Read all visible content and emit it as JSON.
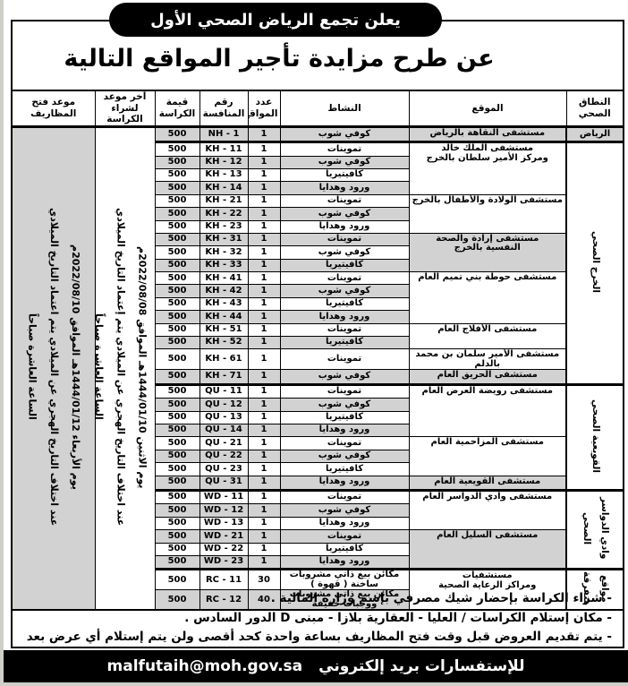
{
  "header": {
    "org_badge": "يعلن تجمع الرياض الصحي الأول",
    "title": "عن طرح مزايدة تأجير المواقع التالية"
  },
  "colors": {
    "shaded_row": "#d2d2d2",
    "footer_bg": "#000000",
    "text": "#000000"
  },
  "table": {
    "columns": [
      "النطاق\nالصحي",
      "الموقع",
      "النشاط",
      "عدد\nالمواقع",
      "رقم المنافسة",
      "قيمة\nالكراسة",
      "آخر موعد لشراء\nالكراسة",
      "موعد فتح\nالمظاريف"
    ],
    "purchase_deadline": "يوم الاثنين 1444/01/10هـ الموافق 2022/08/08م\nعند اختلاف التاريخ الهجري عن الميلادي يتم إعتماد التاريخ الميلادي\nالساعة العاشرة صباحاً",
    "envelope_opening": "يوم الأربعاء 1444/01/12هـ الموافق 2022/08/10م\nعند اختلاف التاريخ الهجري عن الميلادي يتم اعتماد التاريخ الميلادي\nالساعة العاشرة صباحاً",
    "groups": [
      {
        "zone": "الرياض",
        "rotated": false,
        "locations": [
          {
            "name": "مستشفى النقاهة بالرياض",
            "rows": [
              {
                "activity": "كوفي شوب",
                "count": "1",
                "comp": "NH - 1",
                "price": "500"
              }
            ]
          }
        ]
      },
      {
        "zone": "الخرج الصحي",
        "rotated": true,
        "locations": [
          {
            "name": "مستشفى الملك خالد\nومركز الأمير سلطان بالخرج",
            "rows": [
              {
                "activity": "تموينات",
                "count": "1",
                "comp": "KH - 11",
                "price": "500"
              },
              {
                "activity": "كوفي شوب",
                "count": "1",
                "comp": "KH - 12",
                "price": "500"
              },
              {
                "activity": "كافيتيريا",
                "count": "1",
                "comp": "KH - 13",
                "price": "500"
              },
              {
                "activity": "ورود وهدايا",
                "count": "1",
                "comp": "KH - 14",
                "price": "500"
              }
            ]
          },
          {
            "name": "مستشفى الولادة والأطفال بالخرج",
            "rows": [
              {
                "activity": "تموينات",
                "count": "1",
                "comp": "KH - 21",
                "price": "500"
              },
              {
                "activity": "كوفي شوب",
                "count": "1",
                "comp": "KH - 22",
                "price": "500"
              },
              {
                "activity": "ورود وهدايا",
                "count": "1",
                "comp": "KH - 23",
                "price": "500"
              }
            ]
          },
          {
            "name": "مستشفى إرادة والصحة\nالنفسية بالخرج",
            "rows": [
              {
                "activity": "تموينات",
                "count": "1",
                "comp": "KH - 31",
                "price": "500"
              },
              {
                "activity": "كوفي شوب",
                "count": "1",
                "comp": "KH - 32",
                "price": "500"
              },
              {
                "activity": "كافيتيريا",
                "count": "1",
                "comp": "KH - 33",
                "price": "500"
              }
            ]
          },
          {
            "name": "مستشفى حوطة بني تميم العام",
            "rows": [
              {
                "activity": "تموينات",
                "count": "1",
                "comp": "KH - 41",
                "price": "500"
              },
              {
                "activity": "كوفي شوب",
                "count": "1",
                "comp": "KH - 42",
                "price": "500"
              },
              {
                "activity": "كافيتيريا",
                "count": "1",
                "comp": "KH - 43",
                "price": "500"
              },
              {
                "activity": "ورود وهدايا",
                "count": "1",
                "comp": "KH - 44",
                "price": "500"
              }
            ]
          },
          {
            "name": "مستشفى الأفلاج العام",
            "rows": [
              {
                "activity": "تموينات",
                "count": "1",
                "comp": "KH - 51",
                "price": "500"
              },
              {
                "activity": "كافيتيريا",
                "count": "1",
                "comp": "KH - 52",
                "price": "500"
              }
            ]
          },
          {
            "name": "مستشفى الأمير سلمان بن محمد بالدلم",
            "rows": [
              {
                "activity": "تموينات",
                "count": "1",
                "comp": "KH - 61",
                "price": "500"
              }
            ]
          },
          {
            "name": "مستشفى الحريق العام",
            "rows": [
              {
                "activity": "كوفي شوب",
                "count": "1",
                "comp": "KH - 71",
                "price": "500"
              }
            ]
          }
        ]
      },
      {
        "zone": "القويعية الصحي",
        "rotated": true,
        "locations": [
          {
            "name": "مستشفى رويضة العرض العام",
            "rows": [
              {
                "activity": "تموينات",
                "count": "1",
                "comp": "QU - 11",
                "price": "500"
              },
              {
                "activity": "كوفي شوب",
                "count": "1",
                "comp": "QU - 12",
                "price": "500"
              },
              {
                "activity": "كافيتيريا",
                "count": "1",
                "comp": "QU - 13",
                "price": "500"
              },
              {
                "activity": "ورود وهدايا",
                "count": "1",
                "comp": "QU - 14",
                "price": "500"
              }
            ]
          },
          {
            "name": "مستشفى المزاحمية العام",
            "rows": [
              {
                "activity": "تموينات",
                "count": "1",
                "comp": "QU - 21",
                "price": "500"
              },
              {
                "activity": "كوفي شوب",
                "count": "1",
                "comp": "QU - 22",
                "price": "500"
              },
              {
                "activity": "كافيتيريا",
                "count": "1",
                "comp": "QU - 23",
                "price": "500"
              }
            ]
          },
          {
            "name": "مستشفى القويعية العام",
            "rows": [
              {
                "activity": "ورود وهدايا",
                "count": "1",
                "comp": "QU - 31",
                "price": "500"
              }
            ]
          }
        ]
      },
      {
        "zone": "وادي الدواسر الصحي",
        "rotated": true,
        "locations": [
          {
            "name": "مستشفى وادي الدواسر العام",
            "rows": [
              {
                "activity": "تموينات",
                "count": "1",
                "comp": "WD - 11",
                "price": "500"
              },
              {
                "activity": "كوفي شوب",
                "count": "1",
                "comp": "WD - 12",
                "price": "500"
              },
              {
                "activity": "ورود وهدايا",
                "count": "1",
                "comp": "WD - 13",
                "price": "500"
              }
            ]
          },
          {
            "name": "مستشفى السليل العام",
            "rows": [
              {
                "activity": "تموينات",
                "count": "1",
                "comp": "WD - 21",
                "price": "500"
              },
              {
                "activity": "كافيتيريا",
                "count": "1",
                "comp": "WD - 22",
                "price": "500"
              },
              {
                "activity": "ورود وهدايا",
                "count": "1",
                "comp": "WD - 23",
                "price": "500"
              }
            ]
          }
        ]
      },
      {
        "zone": "مواقع\nمتفرقة",
        "rotated": true,
        "locations": [
          {
            "name": "مستشفيات\nومراكز الرعاية الصحية",
            "rows": [
              {
                "activity": "مكائن بيع ذاتي مشروبات ساخنة ( قهوة )",
                "count": "30",
                "comp": "RC - 11",
                "price": "500"
              },
              {
                "activity": "مكائن بيع ذاتي مشروبات ووجبات خفيفة",
                "count": "40",
                "comp": "RC - 12",
                "price": "500"
              }
            ]
          }
        ]
      }
    ]
  },
  "notes": [
    "- شراء الكراسة بإحضار شيك مصرفي بإسم وزارة المالية .",
    "- مكان إستلام الكراسات / العليا - العقارية بلازا -  مبنى D الدور السادس .",
    "- يتم تقديم العروض قبل وقت فتح المظاريف بساعة واحدة كحد أقصى ولن يتم إستلام أي عرض بعد المدة المحددة ."
  ],
  "footer": {
    "label": "للإستفسارات بريد إلكتروني",
    "email": "malfutaih@moh.gov.sa"
  }
}
